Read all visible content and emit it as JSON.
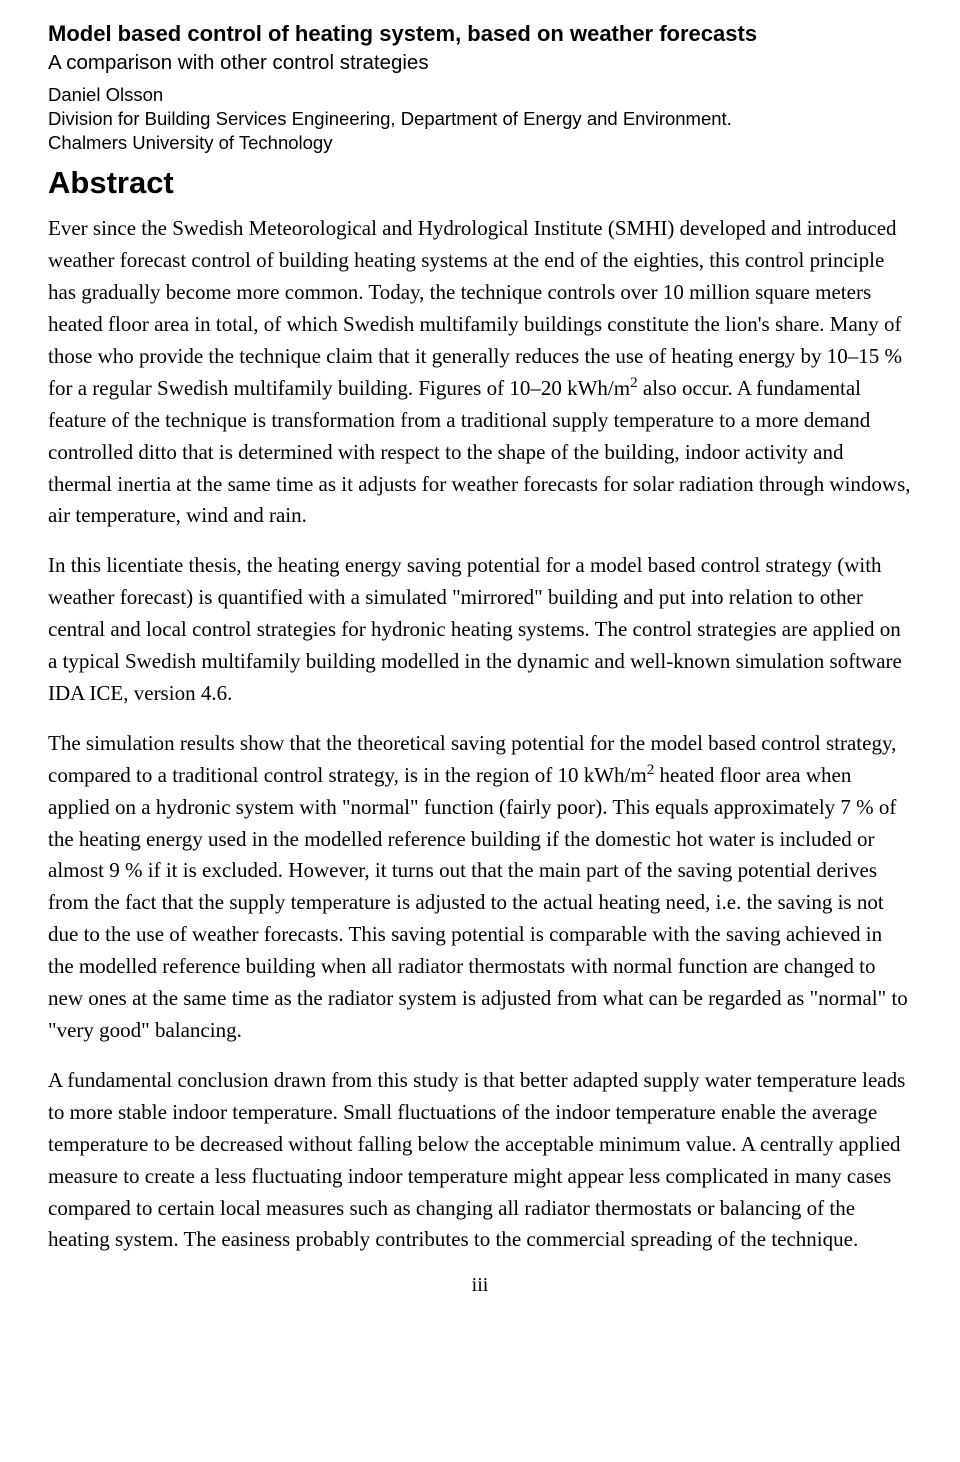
{
  "header": {
    "title_bold": "Model based control of heating system, based on weather forecasts",
    "subtitle": "A comparison with other control strategies",
    "author": "Daniel Olsson",
    "division": "Division for Building Services Engineering, Department of Energy and Environment.",
    "university": "Chalmers University of Technology"
  },
  "abstract_heading": "Abstract",
  "paragraphs": {
    "p1_a": "Ever since the Swedish Meteorological and Hydrological Institute (SMHI) developed and introduced weather forecast control of building heating systems at the end of the eighties, this control principle has gradually become more common. Today, the technique controls over 10 million square meters heated floor area in total, of which Swedish multifamily buildings constitute the lion's share. Many of those who provide the technique claim that it generally reduces the use of heating energy by 10–15 % for a regular Swedish multifamily building. Figures of 10–20 kWh/m",
    "p1_b": " also occur. A fundamental feature of the technique is transformation from a traditional supply temperature to a more demand controlled ditto that is determined with respect to the shape of the building, indoor activity and thermal inertia at the same time as it adjusts for weather forecasts for solar radiation through windows, air temperature, wind and rain.",
    "p2": "In this licentiate thesis, the heating energy saving potential for a model based control strategy (with weather forecast) is quantified with a simulated \"mirrored\" building and put into relation to other central and local control strategies for hydronic heating systems. The control strategies are applied on a typical Swedish multifamily building modelled in the dynamic and well-known simulation software IDA ICE, version 4.6.",
    "p3_a": "The simulation results show that the theoretical saving potential for the model based control strategy, compared to a traditional control strategy, is in the region of 10 kWh/m",
    "p3_b": " heated floor area when applied on a hydronic system with \"normal\" function (fairly poor). This equals approximately 7 % of the heating energy used in the modelled reference building if the domestic hot water is included or almost 9 % if it is excluded. However, it turns out that the main part of the saving potential derives from the fact that the supply temperature is adjusted to the actual heating need, i.e. the saving is not due to the use of weather forecasts. This saving potential is comparable with the saving achieved in the modelled reference building when all radiator thermostats with normal function are changed to new ones at the same time as the radiator system is adjusted from what can be regarded as \"normal\" to \"very good\" balancing.",
    "p4": "A fundamental conclusion drawn from this study is that better adapted supply water temperature leads to more stable indoor temperature. Small fluctuations of the indoor temperature enable the average temperature to be decreased without falling below the acceptable minimum value. A centrally applied measure to create a less fluctuating indoor temperature might appear less complicated in many cases compared to certain local measures such as changing all radiator thermostats or balancing of the heating system. The easiness probably contributes to the commercial spreading of the technique."
  },
  "sup": "2",
  "page_number": "iii"
}
